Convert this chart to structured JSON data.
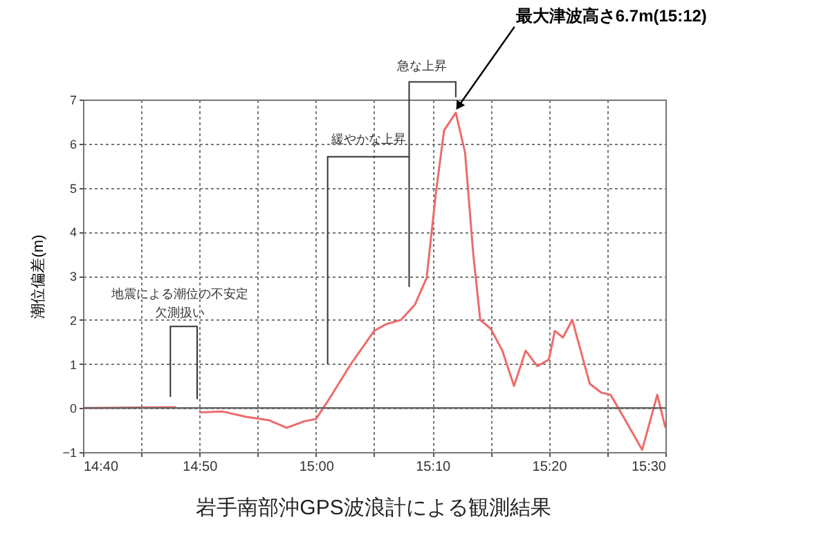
{
  "chart_data": {
    "type": "line",
    "ylabel": "潮位偏差(m)",
    "x": [
      14.6667,
      14.8,
      14.8167,
      14.8333,
      14.8667,
      14.9,
      14.9333,
      14.9583,
      14.9833,
      15.0,
      15.0167,
      15.05,
      15.0833,
      15.1,
      15.1217,
      15.1417,
      15.1583,
      15.1717,
      15.1833,
      15.2,
      15.2133,
      15.225,
      15.235,
      15.25,
      15.2667,
      15.2833,
      15.3,
      15.3167,
      15.3333,
      15.3417,
      15.3533,
      15.3667,
      15.3917,
      15.4083,
      15.4217,
      15.4417,
      15.4667,
      15.4883,
      15.5
    ],
    "series": [
      {
        "color": "#ee6a6a",
        "values": [
          0.0,
          0.02,
          null,
          -0.1,
          -0.08,
          -0.2,
          -0.28,
          -0.45,
          -0.3,
          -0.25,
          0.15,
          1.0,
          1.75,
          1.9,
          2.0,
          2.35,
          2.95,
          4.9,
          6.3,
          6.7,
          5.8,
          3.5,
          2.0,
          1.8,
          1.3,
          0.5,
          1.3,
          0.95,
          1.1,
          1.75,
          1.6,
          2.0,
          0.55,
          0.35,
          0.3,
          -0.25,
          -0.95,
          0.3,
          -0.45
        ]
      }
    ],
    "xlim": [
      14.6667,
      15.5
    ],
    "xticks": [
      {
        "value": 14.6667,
        "label": "14:40"
      },
      {
        "value": 14.75,
        "label": null
      },
      {
        "value": 14.8333,
        "label": "14:50"
      },
      {
        "value": 14.9167,
        "label": null
      },
      {
        "value": 15.0,
        "label": "15:00"
      },
      {
        "value": 15.0833,
        "label": null
      },
      {
        "value": 15.1667,
        "label": "15:10"
      },
      {
        "value": 15.25,
        "label": null
      },
      {
        "value": 15.3333,
        "label": "15:20"
      },
      {
        "value": 15.4167,
        "label": null
      },
      {
        "value": 15.5,
        "label": "15:30"
      }
    ],
    "ylim": [
      -1,
      7
    ],
    "yticks": [
      -1,
      0,
      1,
      2,
      3,
      4,
      5,
      6,
      7
    ],
    "grid": true,
    "marker": "none",
    "line_style": "solid",
    "ref_lines": [
      {
        "axis": "y",
        "value": 0,
        "color": "#666666"
      }
    ],
    "annotations": [
      "地震による潮位の不安定",
      "欠測扱い",
      "緩やかな上昇",
      "急な上昇",
      {
        "text": "最大津波高さ6.7m(15:12)",
        "x": 15.2,
        "y": 6.7
      },
      "岩手南部沖GPS波浪計による観測結果"
    ]
  }
}
